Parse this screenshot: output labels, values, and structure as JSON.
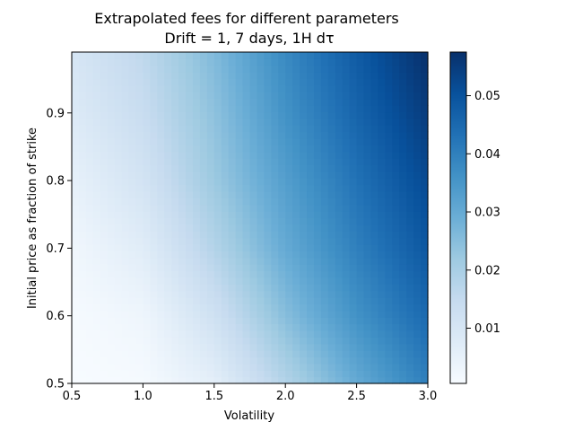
{
  "chart_data": {
    "type": "heatmap",
    "title_line1": "Extrapolated fees for different parameters",
    "title_line2": "Drift = 1, 7 days, 1H dτ",
    "xlabel": "Volatility",
    "ylabel": "Initial price as fraction of strike",
    "xlim": [
      0.5,
      3.0
    ],
    "ylim": [
      0.5,
      0.99
    ],
    "x_ticks": [
      0.5,
      1.0,
      1.5,
      2.0,
      2.5,
      3.0
    ],
    "x_tick_labels": [
      "0.5",
      "1.0",
      "1.5",
      "2.0",
      "2.5",
      "3.0"
    ],
    "y_ticks": [
      0.5,
      0.6,
      0.7,
      0.8,
      0.9
    ],
    "y_tick_labels": [
      "0.5",
      "0.6",
      "0.7",
      "0.8",
      "0.9"
    ],
    "colorbar": {
      "cmap": "Blues",
      "vmin": 0.0005,
      "vmax": 0.0575,
      "ticks": [
        0.01,
        0.02,
        0.03,
        0.04,
        0.05
      ],
      "tick_labels": [
        "0.01",
        "0.02",
        "0.03",
        "0.04",
        "0.05"
      ]
    },
    "sample_values": {
      "x": [
        0.5,
        1.0,
        1.5,
        2.0,
        2.5,
        3.0
      ],
      "y": [
        0.5,
        0.6,
        0.7,
        0.8,
        0.9,
        0.99
      ],
      "z": [
        [
          0.0005,
          0.001,
          0.006,
          0.018,
          0.03,
          0.04
        ],
        [
          0.001,
          0.003,
          0.012,
          0.025,
          0.036,
          0.045
        ],
        [
          0.0025,
          0.007,
          0.018,
          0.03,
          0.04,
          0.049
        ],
        [
          0.005,
          0.011,
          0.022,
          0.033,
          0.043,
          0.052
        ],
        [
          0.008,
          0.014,
          0.024,
          0.036,
          0.046,
          0.055
        ],
        [
          0.01,
          0.016,
          0.026,
          0.038,
          0.048,
          0.0575
        ]
      ]
    }
  }
}
